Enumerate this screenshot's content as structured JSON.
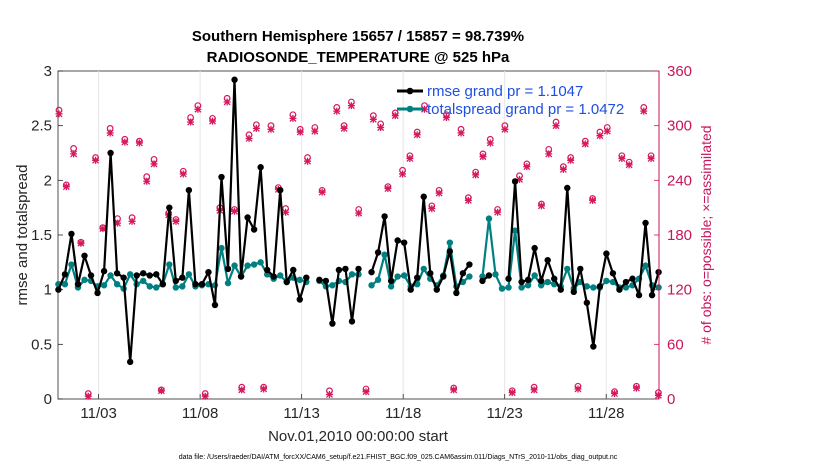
{
  "chart_data": {
    "type": "line",
    "title": "Southern Hemisphere 15657 / 15857 = 98.739%",
    "subtitle": "RADIOSONDE_TEMPERATURE @ 525 hPa",
    "xlabel": "Nov.01,2010 00:00:00 start",
    "ylabel": "rmse and totalspread",
    "ylabel_right": "# of obs: o=possible; ×=assimilated",
    "footnote": "data file: /Users/raeder/DAI/ATM_forcXX/CAM6_setup/f.e21.FHIST_BGC.f09_025.CAM6assim.011/Diags_NTrS_2010-11/obs_diag_output.nc",
    "xlim": [
      1.0,
      30.6
    ],
    "ylim": [
      0,
      3
    ],
    "ylim_right": [
      0,
      360
    ],
    "yticks": [
      "0",
      "0.5",
      "1",
      "1.5",
      "2",
      "2.5",
      "3"
    ],
    "yticks_right": [
      "0",
      "60",
      "120",
      "180",
      "240",
      "300",
      "360"
    ],
    "xticks": [
      {
        "label": "11/03",
        "value": 3
      },
      {
        "label": "11/08",
        "value": 8
      },
      {
        "label": "11/13",
        "value": 13
      },
      {
        "label": "11/18",
        "value": 18
      },
      {
        "label": "11/23",
        "value": 23
      },
      {
        "label": "11/28",
        "value": 28
      }
    ],
    "legend_location": "top-right",
    "series": [
      {
        "name": "rmse grand pr = 1.1047",
        "color": "#000000",
        "values": [
          1.0,
          1.14,
          1.51,
          1.05,
          1.31,
          1.13,
          0.97,
          1.17,
          2.25,
          1.15,
          1.11,
          0.34,
          1.13,
          1.15,
          1.13,
          1.14,
          1.05,
          1.75,
          1.08,
          1.11,
          1.91,
          1.05,
          1.05,
          1.16,
          0.86,
          2.03,
          1.19,
          2.92,
          1.12,
          1.66,
          1.55,
          2.12,
          1.18,
          1.12,
          1.91,
          1.07,
          1.18,
          0.91,
          1.11,
          null,
          1.09,
          1.08,
          0.69,
          1.18,
          1.19,
          0.71,
          1.19,
          null,
          1.16,
          1.34,
          1.67,
          1.08,
          1.45,
          1.43,
          1.0,
          1.11,
          1.85,
          1.15,
          1.0,
          1.12,
          1.35,
          0.97,
          1.15,
          1.23,
          null,
          1.08,
          1.13,
          null,
          null,
          1.1,
          1.99,
          1.07,
          1.09,
          1.38,
          1.08,
          1.27,
          1.1,
          1.0,
          1.93,
          0.98,
          1.19,
          0.88,
          0.48,
          1.03,
          1.33,
          1.15,
          1.0,
          1.07,
          1.1,
          0.95,
          1.61,
          0.95,
          1.16
        ]
      },
      {
        "name": "totalspread grand pr = 1.0472",
        "color": "#008080",
        "values": [
          1.05,
          1.05,
          1.23,
          1.02,
          1.09,
          1.08,
          1.03,
          1.04,
          1.13,
          1.05,
          1.01,
          1.14,
          1.05,
          1.08,
          1.03,
          1.02,
          1.05,
          1.23,
          1.02,
          1.03,
          1.14,
          1.03,
          1.04,
          1.05,
          1.04,
          1.38,
          1.06,
          1.22,
          1.12,
          1.22,
          1.23,
          1.25,
          1.14,
          1.1,
          1.13,
          1.07,
          1.11,
          1.09,
          1.07,
          null,
          1.08,
          1.03,
          1.04,
          1.08,
          1.07,
          1.14,
          1.14,
          null,
          1.04,
          1.09,
          1.32,
          1.03,
          1.12,
          1.13,
          1.03,
          1.05,
          1.19,
          1.1,
          1.04,
          1.13,
          1.43,
          1.03,
          1.07,
          1.12,
          null,
          1.12,
          1.65,
          1.14,
          1.01,
          1.02,
          1.54,
          1.02,
          1.04,
          1.13,
          1.04,
          1.07,
          1.05,
          1.03,
          1.19,
          1.01,
          1.07,
          1.03,
          1.02,
          1.02,
          1.08,
          1.07,
          1.02,
          1.02,
          1.04,
          1.1,
          1.22,
          1.04,
          1.02
        ]
      }
    ],
    "obs_possible": [
      317,
      235,
      275,
      172,
      6,
      265,
      188,
      297,
      198,
      285,
      199,
      283,
      244,
      263,
      10,
      204,
      197,
      250,
      309,
      322,
      6,
      308,
      210,
      330,
      208,
      13,
      290,
      301,
      13,
      300,
      232,
      209,
      312,
      296,
      265,
      298,
      229,
      9,
      320,
      300,
      326,
      208,
      11,
      311,
      302,
      233,
      314,
      251,
      267,
      293,
      322,
      212,
      229,
      312,
      12,
      296,
      221,
      249,
      269,
      285,
      208,
      300,
      9,
      245,
      258,
      13,
      214,
      274,
      304,
      255,
      265,
      14,
      283,
      220,
      293,
      298,
      8,
      267,
      260,
      14,
      320,
      267,
      7
    ],
    "obs_assimilated": [
      313,
      233,
      269,
      171,
      3,
      262,
      187,
      292,
      193,
      282,
      195,
      281,
      239,
      258,
      9,
      202,
      195,
      247,
      304,
      318,
      3,
      305,
      207,
      326,
      206,
      10,
      286,
      297,
      11,
      296,
      230,
      205,
      308,
      293,
      261,
      294,
      227,
      5,
      316,
      297,
      322,
      204,
      8,
      307,
      298,
      231,
      311,
      247,
      264,
      290,
      318,
      209,
      226,
      309,
      10,
      292,
      218,
      246,
      266,
      281,
      205,
      296,
      7,
      241,
      255,
      10,
      212,
      269,
      300,
      252,
      262,
      11,
      280,
      218,
      289,
      294,
      6,
      264,
      257,
      12,
      316,
      264,
      4
    ],
    "obs_x_start": 1.05,
    "obs_x_step": 0.36
  }
}
